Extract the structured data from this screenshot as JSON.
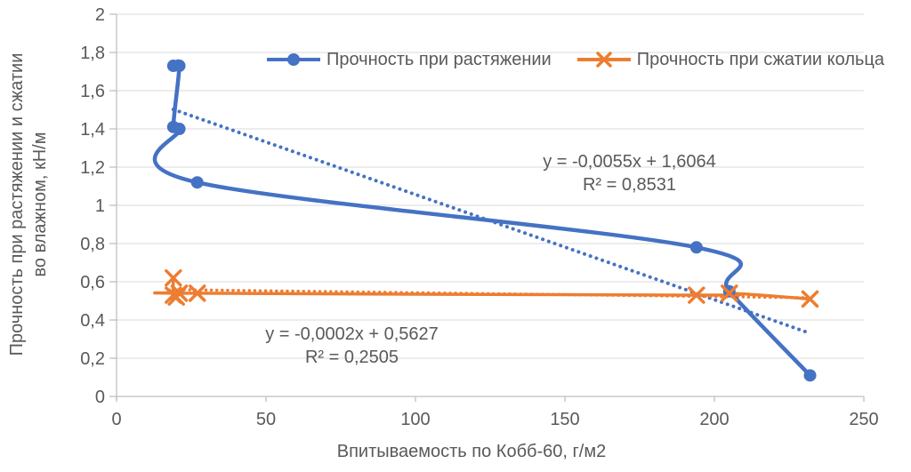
{
  "chart_data": {
    "type": "line",
    "title": "",
    "xlabel": "Впитываемость по Кобб-60, г/м2",
    "ylabel_line1": "Прочность при растяжении и сжатии",
    "ylabel_line2": "во влажном, кН/м",
    "xlim": [
      0,
      250
    ],
    "ylim": [
      0,
      2
    ],
    "x_ticks": [
      0,
      50,
      100,
      150,
      200,
      250
    ],
    "x_tick_labels": [
      "0",
      "50",
      "100",
      "150",
      "200",
      "250"
    ],
    "y_ticks": [
      0,
      0.2,
      0.4,
      0.6,
      0.8,
      1,
      1.2,
      1.4,
      1.6,
      1.8,
      2
    ],
    "y_tick_labels": [
      "0",
      "0,2",
      "0,4",
      "0,6",
      "0,8",
      "1",
      "1,2",
      "1,4",
      "1,6",
      "1,8",
      "2"
    ],
    "grid": "horizontal",
    "legend_position": "top",
    "colors": {
      "series_blue": "#4472C4",
      "series_orange": "#ED7D31",
      "gridline": "#D9D9D9",
      "axis_line": "#BFBFBF",
      "text": "#595959"
    },
    "series": [
      {
        "name": "Прочность при растяжении",
        "color": "#4472C4",
        "marker": "circle",
        "line_width": 4.5,
        "smooth": true,
        "points": [
          [
            19,
            1.73
          ],
          [
            21,
            1.73
          ],
          [
            19,
            1.41
          ],
          [
            21,
            1.4
          ],
          [
            27,
            1.12
          ],
          [
            194,
            0.78
          ],
          [
            205,
            0.55
          ],
          [
            232,
            0.11
          ]
        ],
        "trendline": {
          "style": "dotted",
          "slope": -0.0055,
          "intercept": 1.6064,
          "x_range": [
            19,
            232
          ],
          "equation": "y = -0,0055x + 1,6064",
          "r2_label": "R² = 0,8531"
        }
      },
      {
        "name": "Прочность при сжатии кольца",
        "color": "#ED7D31",
        "marker": "x",
        "line_width": 3.5,
        "smooth": true,
        "points": [
          [
            19,
            0.62
          ],
          [
            19,
            0.53
          ],
          [
            20,
            0.52
          ],
          [
            21,
            0.54
          ],
          [
            27,
            0.54
          ],
          [
            194,
            0.53
          ],
          [
            205,
            0.54
          ],
          [
            232,
            0.51
          ]
        ],
        "trendline": {
          "style": "dotted",
          "slope": -0.0002,
          "intercept": 0.5627,
          "x_range": [
            19,
            232
          ],
          "equation": "y = -0,0002x + 0,5627",
          "r2_label": "R² = 0,2505"
        }
      }
    ]
  }
}
